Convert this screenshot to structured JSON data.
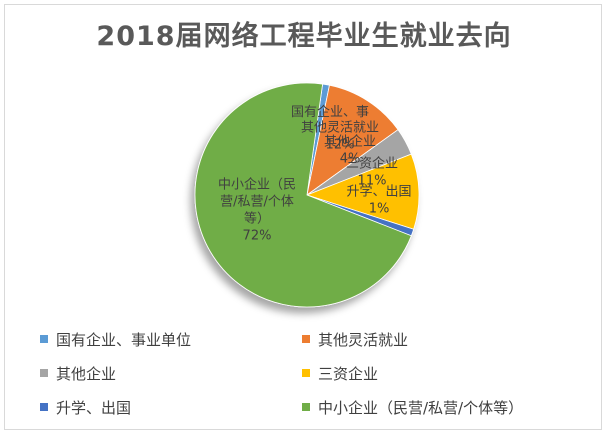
{
  "chart_data": {
    "type": "pie",
    "title": "2018届网络工程毕业生就业去向",
    "slices": [
      {
        "name": "国有企业、事业单位",
        "value": 1,
        "label": "国有企业、事",
        "color": "#5b9bd5"
      },
      {
        "name": "其他灵活就业",
        "value": 12,
        "label": "其他灵活就业\n12%",
        "color": "#ed7d31"
      },
      {
        "name": "其他企业",
        "value": 4,
        "label": "其他企业\n4%",
        "color": "#a5a5a5"
      },
      {
        "name": "三资企业",
        "value": 11,
        "label": "三资企业\n11%",
        "color": "#ffc000"
      },
      {
        "name": "升学、出国",
        "value": 1,
        "label": "升学、出国\n1%",
        "color": "#4472c4"
      },
      {
        "name": "中小企业（民营/私营/个体等）",
        "value": 72,
        "label": "中小企业（民\n营/私营/个体\n等）\n72%",
        "color": "#70ad47"
      }
    ],
    "legend_position": "bottom"
  }
}
